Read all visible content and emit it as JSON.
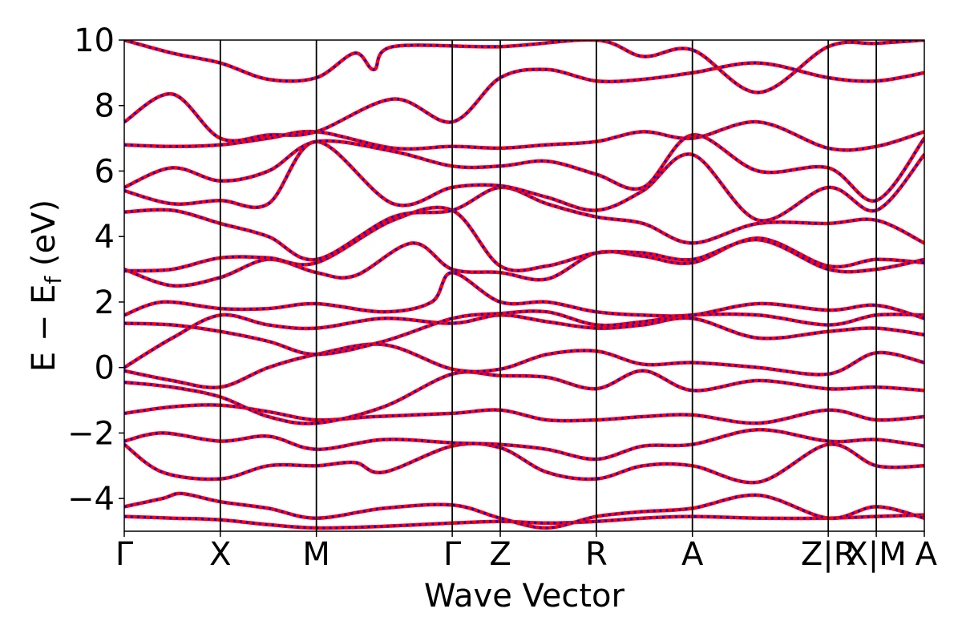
{
  "chart_data": {
    "type": "line",
    "title": "",
    "xlabel": "Wave Vector",
    "ylabel": "E − E_f (eV)",
    "ylabel_parts": {
      "main": "E − E",
      "sub": "f",
      "unit": " (eV)"
    },
    "ylim": [
      -5,
      10
    ],
    "yticks": [
      -4,
      -2,
      0,
      2,
      4,
      6,
      8,
      10
    ],
    "ytick_labels": [
      "−4",
      "−2",
      "0",
      "2",
      "4",
      "6",
      "8",
      "10"
    ],
    "kpath_positions": [
      0.0,
      0.5,
      1.0,
      1.7071,
      1.9571,
      2.4571,
      2.9571,
      3.6642,
      3.9142,
      4.1642
    ],
    "kpath_labels": [
      "Γ",
      "X",
      "M",
      "Γ",
      "Z",
      "R",
      "A",
      "Z|R",
      "X|M",
      "A"
    ],
    "kpath_label_positions": [
      0.0,
      0.5,
      1.0,
      1.7071,
      1.9571,
      2.4571,
      2.9571,
      3.6642,
      3.9142,
      4.1642
    ],
    "grid": false,
    "legend": "none",
    "series_styles": [
      {
        "color": "#ff0000",
        "style": "solid"
      },
      {
        "color": "#0000ff",
        "style": "dotted"
      }
    ],
    "bands": [
      [
        [
          0.0,
          -4.55
        ],
        [
          0.25,
          -4.6
        ],
        [
          0.5,
          -4.65
        ],
        [
          0.75,
          -4.8
        ],
        [
          1.0,
          -4.9
        ],
        [
          1.35,
          -4.85
        ],
        [
          1.7071,
          -4.75
        ],
        [
          1.9571,
          -4.7
        ],
        [
          2.2,
          -4.75
        ],
        [
          2.4571,
          -4.7
        ],
        [
          2.7,
          -4.6
        ],
        [
          2.9571,
          -4.55
        ],
        [
          3.3,
          -4.6
        ],
        [
          3.6642,
          -4.6
        ],
        [
          3.9142,
          -4.55
        ],
        [
          4.1642,
          -4.5
        ]
      ],
      [
        [
          0.0,
          -4.25
        ],
        [
          0.2,
          -4.0
        ],
        [
          0.3,
          -3.85
        ],
        [
          0.5,
          -4.1
        ],
        [
          0.75,
          -4.3
        ],
        [
          1.0,
          -4.6
        ],
        [
          1.35,
          -4.3
        ],
        [
          1.7071,
          -4.2
        ],
        [
          1.9571,
          -4.6
        ],
        [
          2.2,
          -4.9
        ],
        [
          2.4571,
          -4.55
        ],
        [
          2.7,
          -4.4
        ],
        [
          2.9571,
          -4.3
        ],
        [
          3.3,
          -3.9
        ],
        [
          3.6642,
          -4.6
        ],
        [
          3.9142,
          -4.25
        ],
        [
          4.1642,
          -4.6
        ]
      ],
      [
        [
          0.0,
          -2.35
        ],
        [
          0.2,
          -3.2
        ],
        [
          0.5,
          -3.4
        ],
        [
          0.75,
          -3.0
        ],
        [
          1.0,
          -3.0
        ],
        [
          1.2,
          -2.9
        ],
        [
          1.35,
          -3.2
        ],
        [
          1.7071,
          -2.4
        ],
        [
          1.9571,
          -2.45
        ],
        [
          2.2,
          -3.2
        ],
        [
          2.4571,
          -3.4
        ],
        [
          2.7,
          -3.0
        ],
        [
          2.9571,
          -3.0
        ],
        [
          3.3,
          -3.5
        ],
        [
          3.6642,
          -2.35
        ],
        [
          3.9142,
          -3.0
        ],
        [
          4.1642,
          -3.0
        ]
      ],
      [
        [
          0.0,
          -2.25
        ],
        [
          0.2,
          -2.0
        ],
        [
          0.5,
          -2.25
        ],
        [
          0.75,
          -2.1
        ],
        [
          1.0,
          -2.5
        ],
        [
          1.35,
          -2.2
        ],
        [
          1.7071,
          -2.3
        ],
        [
          1.9571,
          -2.35
        ],
        [
          2.2,
          -2.5
        ],
        [
          2.4571,
          -2.8
        ],
        [
          2.7,
          -2.4
        ],
        [
          2.9571,
          -2.35
        ],
        [
          3.3,
          -1.9
        ],
        [
          3.6642,
          -2.25
        ],
        [
          3.9142,
          -2.2
        ],
        [
          4.1642,
          -2.4
        ]
      ],
      [
        [
          0.0,
          -1.4
        ],
        [
          0.25,
          -1.2
        ],
        [
          0.5,
          -1.15
        ],
        [
          0.75,
          -1.35
        ],
        [
          1.0,
          -1.6
        ],
        [
          1.3,
          -1.5
        ],
        [
          1.7071,
          -1.4
        ],
        [
          1.9571,
          -1.3
        ],
        [
          2.2,
          -1.6
        ],
        [
          2.4571,
          -1.6
        ],
        [
          2.7,
          -1.5
        ],
        [
          2.9571,
          -1.45
        ],
        [
          3.3,
          -1.7
        ],
        [
          3.6642,
          -1.3
        ],
        [
          3.9142,
          -1.6
        ],
        [
          4.1642,
          -1.5
        ]
      ],
      [
        [
          0.0,
          -0.45
        ],
        [
          0.25,
          -0.6
        ],
        [
          0.5,
          -0.9
        ],
        [
          0.75,
          -1.5
        ],
        [
          1.0,
          -1.7
        ],
        [
          1.35,
          -1.2
        ],
        [
          1.7071,
          -0.2
        ],
        [
          1.9571,
          -0.25
        ],
        [
          2.2,
          -0.3
        ],
        [
          2.4571,
          -0.65
        ],
        [
          2.7,
          -0.1
        ],
        [
          2.9571,
          -0.7
        ],
        [
          3.3,
          -0.4
        ],
        [
          3.6642,
          -0.65
        ],
        [
          3.9142,
          -0.6
        ],
        [
          4.1642,
          -0.7
        ]
      ],
      [
        [
          0.0,
          -0.1
        ],
        [
          0.25,
          -0.4
        ],
        [
          0.5,
          -0.6
        ],
        [
          0.75,
          0.0
        ],
        [
          1.0,
          0.4
        ],
        [
          1.35,
          0.7
        ],
        [
          1.7071,
          -0.05
        ],
        [
          1.9571,
          -0.05
        ],
        [
          2.2,
          0.4
        ],
        [
          2.4571,
          0.5
        ],
        [
          2.7,
          0.1
        ],
        [
          2.9571,
          0.15
        ],
        [
          3.3,
          0.0
        ],
        [
          3.6642,
          -0.2
        ],
        [
          3.9142,
          0.45
        ],
        [
          4.1642,
          0.15
        ]
      ],
      [
        [
          0.0,
          0.0
        ],
        [
          0.25,
          0.9
        ],
        [
          0.5,
          1.6
        ],
        [
          0.75,
          1.3
        ],
        [
          1.0,
          1.2
        ],
        [
          1.35,
          1.5
        ],
        [
          1.7071,
          1.35
        ],
        [
          1.9571,
          1.6
        ],
        [
          2.2,
          1.4
        ],
        [
          2.4571,
          1.2
        ],
        [
          2.7,
          1.3
        ],
        [
          2.9571,
          1.5
        ],
        [
          3.3,
          0.9
        ],
        [
          3.6642,
          1.1
        ],
        [
          3.9142,
          1.2
        ],
        [
          4.1642,
          1.0
        ]
      ],
      [
        [
          0.0,
          1.35
        ],
        [
          0.25,
          1.3
        ],
        [
          0.5,
          1.1
        ],
        [
          0.75,
          0.8
        ],
        [
          1.0,
          0.4
        ],
        [
          1.35,
          0.8
        ],
        [
          1.7071,
          1.5
        ],
        [
          1.9571,
          1.65
        ],
        [
          2.2,
          1.7
        ],
        [
          2.4571,
          1.3
        ],
        [
          2.7,
          1.4
        ],
        [
          2.9571,
          1.6
        ],
        [
          3.3,
          1.6
        ],
        [
          3.6642,
          1.3
        ],
        [
          3.9142,
          1.6
        ],
        [
          4.1642,
          1.6
        ]
      ],
      [
        [
          0.0,
          1.6
        ],
        [
          0.2,
          2.0
        ],
        [
          0.5,
          1.8
        ],
        [
          0.75,
          1.8
        ],
        [
          1.0,
          1.95
        ],
        [
          1.35,
          1.7
        ],
        [
          1.6,
          2.0
        ],
        [
          1.7071,
          2.9
        ],
        [
          1.9571,
          2.0
        ],
        [
          2.2,
          2.0
        ],
        [
          2.4571,
          1.7
        ],
        [
          2.7,
          1.6
        ],
        [
          2.9571,
          1.6
        ],
        [
          3.3,
          1.95
        ],
        [
          3.6642,
          1.75
        ],
        [
          3.9142,
          1.9
        ],
        [
          4.1642,
          1.5
        ]
      ],
      [
        [
          0.0,
          3.0
        ],
        [
          0.25,
          2.5
        ],
        [
          0.5,
          2.75
        ],
        [
          0.75,
          3.3
        ],
        [
          1.0,
          2.9
        ],
        [
          1.2,
          2.8
        ],
        [
          1.5,
          3.8
        ],
        [
          1.7071,
          3.0
        ],
        [
          1.9571,
          2.9
        ],
        [
          2.2,
          2.7
        ],
        [
          2.4571,
          3.5
        ],
        [
          2.7,
          3.4
        ],
        [
          2.9571,
          3.2
        ],
        [
          3.3,
          3.95
        ],
        [
          3.6642,
          3.1
        ],
        [
          3.9142,
          3.3
        ],
        [
          4.1642,
          3.2
        ]
      ],
      [
        [
          0.0,
          2.95
        ],
        [
          0.25,
          3.0
        ],
        [
          0.5,
          3.35
        ],
        [
          0.75,
          3.35
        ],
        [
          1.0,
          3.2
        ],
        [
          1.4,
          4.5
        ],
        [
          1.7071,
          4.8
        ],
        [
          1.9571,
          3.1
        ],
        [
          2.2,
          3.1
        ],
        [
          2.4571,
          3.5
        ],
        [
          2.7,
          3.5
        ],
        [
          2.9571,
          3.3
        ],
        [
          3.3,
          3.9
        ],
        [
          3.6642,
          3.0
        ],
        [
          3.9142,
          3.0
        ],
        [
          4.1642,
          3.3
        ]
      ],
      [
        [
          0.0,
          4.75
        ],
        [
          0.25,
          4.8
        ],
        [
          0.5,
          4.4
        ],
        [
          0.75,
          4.0
        ],
        [
          1.0,
          3.3
        ],
        [
          1.4,
          4.6
        ],
        [
          1.7071,
          4.8
        ],
        [
          1.9571,
          5.5
        ],
        [
          2.2,
          5.0
        ],
        [
          2.4571,
          4.6
        ],
        [
          2.7,
          4.4
        ],
        [
          2.9571,
          3.8
        ],
        [
          3.3,
          4.4
        ],
        [
          3.6642,
          4.4
        ],
        [
          3.9142,
          4.5
        ],
        [
          4.1642,
          3.8
        ]
      ],
      [
        [
          0.0,
          5.4
        ],
        [
          0.25,
          5.0
        ],
        [
          0.5,
          5.1
        ],
        [
          0.75,
          5.0
        ],
        [
          1.0,
          6.9
        ],
        [
          1.4,
          5.0
        ],
        [
          1.7071,
          5.5
        ],
        [
          1.9571,
          5.55
        ],
        [
          2.2,
          5.2
        ],
        [
          2.4571,
          4.8
        ],
        [
          2.7,
          5.4
        ],
        [
          2.9571,
          6.5
        ],
        [
          3.3,
          4.5
        ],
        [
          3.6642,
          5.5
        ],
        [
          3.9142,
          4.8
        ],
        [
          4.1642,
          6.5
        ]
      ],
      [
        [
          0.0,
          5.5
        ],
        [
          0.25,
          6.1
        ],
        [
          0.5,
          5.7
        ],
        [
          0.75,
          6.0
        ],
        [
          1.0,
          6.9
        ],
        [
          1.4,
          6.6
        ],
        [
          1.7071,
          6.15
        ],
        [
          1.9571,
          6.15
        ],
        [
          2.2,
          6.3
        ],
        [
          2.4571,
          5.9
        ],
        [
          2.7,
          5.5
        ],
        [
          2.9571,
          7.1
        ],
        [
          3.3,
          6.0
        ],
        [
          3.6642,
          6.1
        ],
        [
          3.9142,
          5.1
        ],
        [
          4.1642,
          7.0
        ]
      ],
      [
        [
          0.0,
          6.8
        ],
        [
          0.25,
          6.75
        ],
        [
          0.5,
          6.8
        ],
        [
          0.75,
          7.0
        ],
        [
          1.0,
          7.2
        ],
        [
          1.4,
          6.7
        ],
        [
          1.7071,
          6.75
        ],
        [
          1.9571,
          6.7
        ],
        [
          2.2,
          6.8
        ],
        [
          2.4571,
          6.9
        ],
        [
          2.7,
          7.2
        ],
        [
          2.9571,
          7.0
        ],
        [
          3.3,
          7.5
        ],
        [
          3.6642,
          6.7
        ],
        [
          3.9142,
          6.75
        ],
        [
          4.1642,
          7.2
        ]
      ],
      [
        [
          0.0,
          7.5
        ],
        [
          0.25,
          8.35
        ],
        [
          0.5,
          7.0
        ],
        [
          0.75,
          7.1
        ],
        [
          1.0,
          7.2
        ],
        [
          1.4,
          8.2
        ],
        [
          1.7071,
          7.5
        ],
        [
          1.9571,
          8.85
        ],
        [
          2.2,
          9.1
        ],
        [
          2.4571,
          8.75
        ],
        [
          2.7,
          8.8
        ],
        [
          2.9571,
          9.0
        ],
        [
          3.3,
          9.3
        ],
        [
          3.6642,
          8.85
        ],
        [
          3.9142,
          8.75
        ],
        [
          4.1642,
          9.0
        ]
      ],
      [
        [
          0.0,
          10.0
        ],
        [
          0.25,
          9.6
        ],
        [
          0.5,
          9.3
        ],
        [
          0.75,
          8.8
        ],
        [
          1.0,
          8.85
        ],
        [
          1.2,
          9.6
        ],
        [
          1.3,
          9.1
        ],
        [
          1.4,
          9.8
        ],
        [
          1.9571,
          9.8
        ],
        [
          2.4571,
          10.0
        ],
        [
          2.7,
          9.5
        ],
        [
          2.9571,
          9.7
        ],
        [
          3.3,
          8.4
        ],
        [
          3.6642,
          9.8
        ],
        [
          3.9142,
          9.9
        ],
        [
          4.1642,
          10.0
        ]
      ]
    ]
  }
}
